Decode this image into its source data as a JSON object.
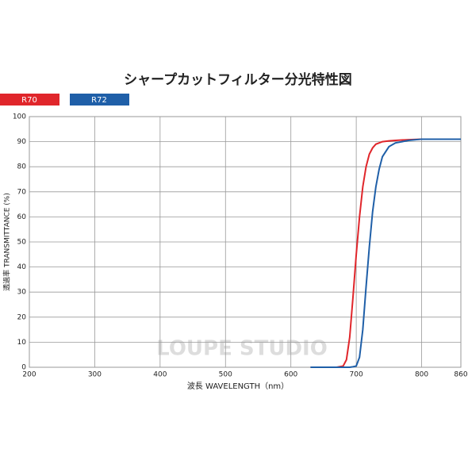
{
  "chart_data": {
    "type": "line",
    "title": "シャープカットフィルター分光特性図",
    "x_label": "波長 WAVELENGTH（nm）",
    "y_label": "透過率 TRANSMITTANCE (%)",
    "annotations": [
      "LOUPE STUDIO"
    ],
    "x": [
      630,
      670,
      680,
      685,
      690,
      695,
      700,
      705,
      710,
      715,
      720,
      725,
      730,
      735,
      740,
      750,
      760,
      780,
      800,
      860
    ],
    "series": [
      {
        "name": "R70",
        "color": "#e0262b",
        "values": [
          0,
          0,
          0.5,
          3,
          12,
          28,
          45,
          60,
          72,
          80,
          85,
          87.5,
          89,
          89.5,
          90,
          90.3,
          90.5,
          90.8,
          91,
          91
        ]
      },
      {
        "name": "R72",
        "color": "#1f5fa8",
        "values": [
          0,
          0,
          0,
          0,
          0,
          0.2,
          0.5,
          4,
          15,
          32,
          48,
          62,
          72,
          79,
          84,
          88,
          89.5,
          90.5,
          91,
          91
        ]
      }
    ],
    "xlim": [
      200,
      860
    ],
    "xticks": [
      200,
      300,
      400,
      500,
      600,
      700,
      800,
      860
    ],
    "ylim": [
      0,
      100
    ],
    "yticks": [
      0,
      10,
      20,
      30,
      40,
      50,
      60,
      70,
      80,
      90,
      100
    ],
    "grid": true
  }
}
